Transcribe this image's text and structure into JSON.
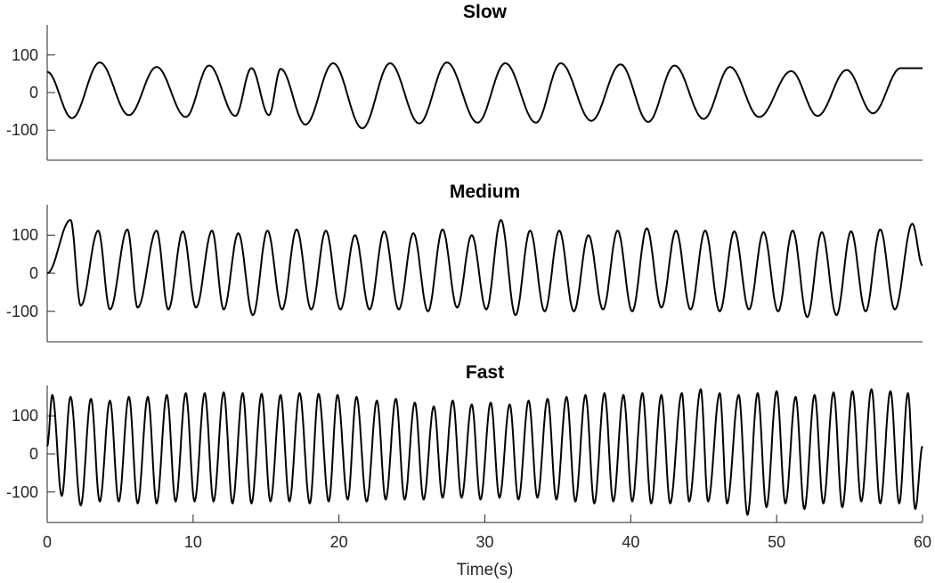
{
  "chart_data": [
    {
      "type": "line",
      "title": "Slow",
      "xlabel": "",
      "ylabel": "",
      "xlim": [
        0,
        60
      ],
      "ylim": [
        -180,
        180
      ],
      "yticks": [
        -100,
        0,
        100
      ],
      "ytick_labels": [
        "-100",
        "0",
        "100"
      ],
      "xticks": [],
      "xtick_labels": [],
      "grid": false,
      "series": [
        {
          "color": "#000000",
          "peaks": [
            [
              3.6,
              80
            ],
            [
              7.5,
              68
            ],
            [
              11.1,
              72
            ],
            [
              14.0,
              65
            ],
            [
              16.0,
              63
            ],
            [
              19.6,
              78
            ],
            [
              23.5,
              78
            ],
            [
              27.4,
              80
            ],
            [
              31.4,
              78
            ],
            [
              35.2,
              78
            ],
            [
              39.3,
              75
            ],
            [
              43.0,
              72
            ],
            [
              46.8,
              68
            ],
            [
              51.0,
              57
            ],
            [
              54.8,
              60
            ],
            [
              58.5,
              65
            ]
          ],
          "troughs": [
            [
              1.7,
              -68
            ],
            [
              5.6,
              -60
            ],
            [
              9.5,
              -65
            ],
            [
              12.9,
              -62
            ],
            [
              15.2,
              -60
            ],
            [
              17.7,
              -85
            ],
            [
              21.6,
              -95
            ],
            [
              25.5,
              -82
            ],
            [
              29.5,
              -80
            ],
            [
              33.5,
              -80
            ],
            [
              37.3,
              -75
            ],
            [
              41.2,
              -78
            ],
            [
              45.0,
              -70
            ],
            [
              48.8,
              -65
            ],
            [
              52.8,
              -62
            ],
            [
              56.6,
              -55
            ]
          ],
          "start": [
            0,
            55
          ],
          "end": [
            60,
            65
          ]
        }
      ]
    },
    {
      "type": "line",
      "title": "Medium",
      "xlabel": "",
      "ylabel": "",
      "xlim": [
        0,
        60
      ],
      "ylim": [
        -180,
        180
      ],
      "yticks": [
        -100,
        0,
        100
      ],
      "ytick_labels": [
        "-100",
        "0",
        "100"
      ],
      "xticks": [],
      "xtick_labels": [],
      "grid": false,
      "series": [
        {
          "color": "#000000",
          "peaks": [
            [
              1.6,
              140
            ],
            [
              3.5,
              112
            ],
            [
              5.5,
              115
            ],
            [
              7.5,
              112
            ],
            [
              9.3,
              110
            ],
            [
              11.3,
              112
            ],
            [
              13.1,
              105
            ],
            [
              15.1,
              112
            ],
            [
              17.1,
              115
            ],
            [
              19.1,
              112
            ],
            [
              21.1,
              100
            ],
            [
              23.1,
              110
            ],
            [
              25.1,
              105
            ],
            [
              27.1,
              115
            ],
            [
              29.1,
              100
            ],
            [
              31.1,
              140
            ],
            [
              33.1,
              112
            ],
            [
              35.1,
              112
            ],
            [
              37.1,
              100
            ],
            [
              39.1,
              112
            ],
            [
              41.1,
              118
            ],
            [
              43.1,
              112
            ],
            [
              45.1,
              112
            ],
            [
              47.1,
              110
            ],
            [
              49.1,
              108
            ],
            [
              51.1,
              112
            ],
            [
              53.1,
              108
            ],
            [
              55.1,
              110
            ],
            [
              57.1,
              115
            ],
            [
              59.3,
              130
            ]
          ],
          "troughs": [
            [
              2.3,
              -85
            ],
            [
              4.3,
              -95
            ],
            [
              6.2,
              -90
            ],
            [
              8.3,
              -95
            ],
            [
              10.2,
              -90
            ],
            [
              12.1,
              -95
            ],
            [
              14.1,
              -110
            ],
            [
              16.1,
              -95
            ],
            [
              18.1,
              -95
            ],
            [
              20.1,
              -95
            ],
            [
              22.1,
              -95
            ],
            [
              24.1,
              -95
            ],
            [
              26.1,
              -100
            ],
            [
              28.1,
              -90
            ],
            [
              30.1,
              -95
            ],
            [
              32.1,
              -110
            ],
            [
              34.1,
              -100
            ],
            [
              36.1,
              -100
            ],
            [
              38.1,
              -95
            ],
            [
              40.1,
              -100
            ],
            [
              42.1,
              -90
            ],
            [
              44.1,
              -95
            ],
            [
              46.1,
              -100
            ],
            [
              48.1,
              -95
            ],
            [
              50.1,
              -100
            ],
            [
              52.1,
              -115
            ],
            [
              54.1,
              -110
            ],
            [
              56.1,
              -100
            ],
            [
              58.1,
              -95
            ]
          ],
          "start": [
            0,
            0
          ],
          "end": [
            60,
            20
          ]
        }
      ]
    },
    {
      "type": "line",
      "title": "Fast",
      "xlabel": "Time(s)",
      "ylabel": "",
      "xlim": [
        0,
        60
      ],
      "ylim": [
        -180,
        180
      ],
      "yticks": [
        -100,
        0,
        100
      ],
      "ytick_labels": [
        "-100",
        "0",
        "100"
      ],
      "xticks": [
        0,
        10,
        20,
        30,
        40,
        50,
        60
      ],
      "xtick_labels": [
        "0",
        "10",
        "20",
        "30",
        "40",
        "50",
        "60"
      ],
      "grid": false,
      "series": [
        {
          "color": "#000000",
          "peaks": [
            [
              0.35,
              155
            ],
            [
              1.6,
              150
            ],
            [
              3.0,
              145
            ],
            [
              4.3,
              140
            ],
            [
              5.6,
              150
            ],
            [
              6.9,
              150
            ],
            [
              8.2,
              155
            ],
            [
              9.5,
              160
            ],
            [
              10.8,
              160
            ],
            [
              12.1,
              162
            ],
            [
              13.4,
              160
            ],
            [
              14.7,
              158
            ],
            [
              16.0,
              155
            ],
            [
              17.3,
              160
            ],
            [
              18.6,
              158
            ],
            [
              19.9,
              155
            ],
            [
              21.2,
              150
            ],
            [
              22.6,
              140
            ],
            [
              23.9,
              145
            ],
            [
              25.2,
              135
            ],
            [
              26.5,
              125
            ],
            [
              27.8,
              140
            ],
            [
              29.1,
              130
            ],
            [
              30.4,
              135
            ],
            [
              31.7,
              130
            ],
            [
              33.0,
              140
            ],
            [
              34.3,
              145
            ],
            [
              35.6,
              150
            ],
            [
              36.9,
              155
            ],
            [
              38.2,
              160
            ],
            [
              39.5,
              155
            ],
            [
              40.8,
              160
            ],
            [
              42.1,
              155
            ],
            [
              43.5,
              160
            ],
            [
              44.8,
              170
            ],
            [
              46.1,
              160
            ],
            [
              47.4,
              155
            ],
            [
              48.7,
              160
            ],
            [
              50.0,
              165
            ],
            [
              51.3,
              150
            ],
            [
              52.6,
              155
            ],
            [
              53.9,
              162
            ],
            [
              55.2,
              165
            ],
            [
              56.5,
              170
            ],
            [
              57.8,
              165
            ],
            [
              59.0,
              160
            ]
          ],
          "troughs": [
            [
              1.0,
              -110
            ],
            [
              2.3,
              -135
            ],
            [
              3.6,
              -125
            ],
            [
              4.9,
              -125
            ],
            [
              6.2,
              -130
            ],
            [
              7.5,
              -130
            ],
            [
              8.8,
              -125
            ],
            [
              10.1,
              -125
            ],
            [
              11.4,
              -125
            ],
            [
              12.7,
              -130
            ],
            [
              14.0,
              -130
            ],
            [
              15.3,
              -125
            ],
            [
              16.6,
              -125
            ],
            [
              18.0,
              -130
            ],
            [
              19.3,
              -125
            ],
            [
              20.6,
              -120
            ],
            [
              21.9,
              -125
            ],
            [
              23.2,
              -120
            ],
            [
              24.5,
              -120
            ],
            [
              25.8,
              -120
            ],
            [
              27.1,
              -115
            ],
            [
              28.4,
              -115
            ],
            [
              29.7,
              -120
            ],
            [
              31.0,
              -115
            ],
            [
              32.3,
              -120
            ],
            [
              33.6,
              -115
            ],
            [
              34.9,
              -120
            ],
            [
              36.2,
              -125
            ],
            [
              37.5,
              -130
            ],
            [
              38.8,
              -125
            ],
            [
              40.1,
              -125
            ],
            [
              41.4,
              -130
            ],
            [
              42.7,
              -130
            ],
            [
              44.0,
              -125
            ],
            [
              45.3,
              -125
            ],
            [
              46.6,
              -130
            ],
            [
              48.0,
              -160
            ],
            [
              49.3,
              -140
            ],
            [
              50.6,
              -130
            ],
            [
              51.9,
              -145
            ],
            [
              53.2,
              -130
            ],
            [
              54.5,
              -140
            ],
            [
              55.8,
              -125
            ],
            [
              57.1,
              -130
            ],
            [
              58.4,
              -130
            ],
            [
              59.5,
              -145
            ]
          ],
          "start": [
            0,
            20
          ],
          "end": [
            60,
            20
          ]
        }
      ]
    }
  ]
}
